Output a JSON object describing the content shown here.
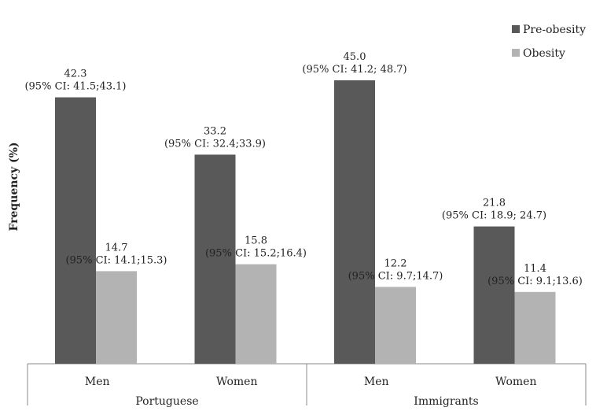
{
  "chart_data": {
    "type": "bar",
    "ylabel": "Frequency (%)",
    "ylim": [
      0,
      46
    ],
    "grid": false,
    "legend_position": "top-right",
    "categories": [
      "Men",
      "Women",
      "Men",
      "Women"
    ],
    "groups": [
      {
        "label": "Portuguese",
        "categories": [
          "Men",
          "Women"
        ]
      },
      {
        "label": "Immigrants",
        "categories": [
          "Men",
          "Women"
        ]
      }
    ],
    "series": [
      {
        "name": "Pre-obesity",
        "color": "#595959",
        "values": [
          42.3,
          33.2,
          45.0,
          21.8
        ],
        "labels": [
          "42.3",
          "33.2",
          "45.0",
          "21.8"
        ],
        "ci": [
          "(95% CI: 41.5;43.1)",
          "(95% CI: 32.4;33.9)",
          "(95% CI: 41.2; 48.7)",
          "(95% CI: 18.9; 24.7)"
        ]
      },
      {
        "name": "Obesity",
        "color": "#b3b3b3",
        "values": [
          14.7,
          15.8,
          12.2,
          11.4
        ],
        "labels": [
          "14.7",
          "15.8",
          "12.2",
          "11.4"
        ],
        "ci": [
          "(95% CI: 14.1;15.3)",
          "(95% CI: 15.2;16.4)",
          "(95% CI: 9.7;14.7)",
          "(95% CI: 9.1;13.6)"
        ]
      }
    ]
  }
}
